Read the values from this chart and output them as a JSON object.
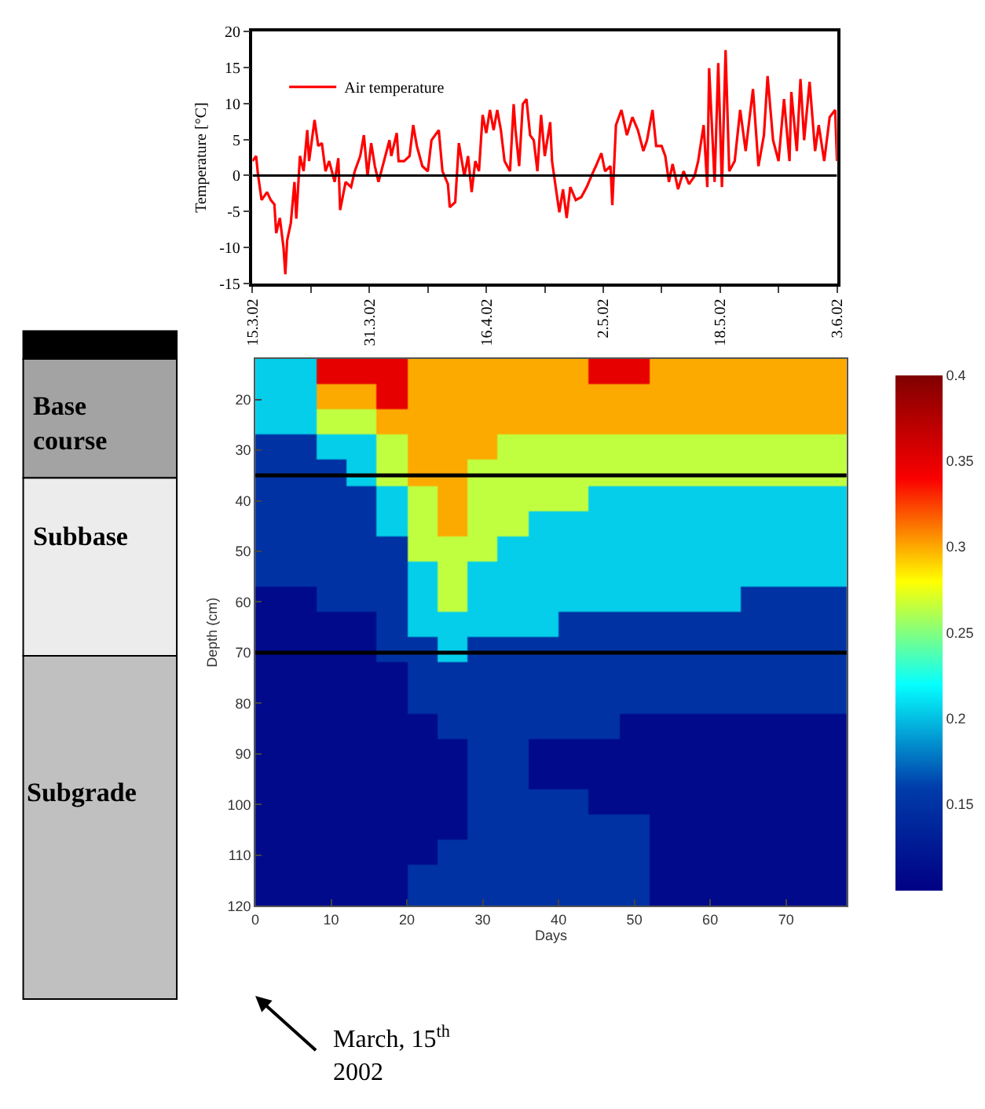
{
  "chart_data": [
    {
      "type": "line",
      "ylabel": "Temperature [°C]",
      "legend": "top left",
      "xlim": [
        "2002-03-15",
        "2002-06-03"
      ],
      "ylim": [
        -15,
        20
      ],
      "xticks": [
        {
          "value": "2002-03-15",
          "label": "15.3.02"
        },
        {
          "value": "2002-03-23",
          "label": null
        },
        {
          "value": "2002-03-31",
          "label": "31.3.02"
        },
        {
          "value": "2002-04-08",
          "label": null
        },
        {
          "value": "2002-04-16",
          "label": "16.4.02"
        },
        {
          "value": "2002-04-24",
          "label": null
        },
        {
          "value": "2002-05-02",
          "label": "2.5.02"
        },
        {
          "value": "2002-05-10",
          "label": null
        },
        {
          "value": "2002-05-18",
          "label": "18.5.02"
        },
        {
          "value": "2002-05-26",
          "label": null
        },
        {
          "value": "2002-06-03",
          "label": "3.6.02"
        }
      ],
      "yticks": [
        -15,
        -10,
        -5,
        0,
        5,
        10,
        15,
        20
      ],
      "ref_lines": [
        {
          "axis": "y",
          "value": 0,
          "color": "#000000"
        }
      ],
      "marker": "none",
      "line_style": "solid",
      "series": [
        {
          "name": "Air temperature",
          "color": "#ff0000",
          "x": [
            "2002-03-15T00:00",
            "2002-03-15T12:00",
            "2002-03-15T18:00",
            "2002-03-16T06:00",
            "2002-03-17T00:00",
            "2002-03-17T12:00",
            "2002-03-18T00:00",
            "2002-03-18T06:00",
            "2002-03-18T18:00",
            "2002-03-19T06:00",
            "2002-03-19T12:00",
            "2002-03-19T18:00",
            "2002-03-20T06:00",
            "2002-03-20T18:00",
            "2002-03-21T00:00",
            "2002-03-21T12:00",
            "2002-03-22T00:00",
            "2002-03-22T12:00",
            "2002-03-22T18:00",
            "2002-03-23T12:00",
            "2002-03-24T00:00",
            "2002-03-24T12:00",
            "2002-03-25T00:00",
            "2002-03-25T12:00",
            "2002-03-26T06:00",
            "2002-03-26T18:00",
            "2002-03-27T00:00",
            "2002-03-27T18:00",
            "2002-03-28T12:00",
            "2002-03-29T00:00",
            "2002-03-29T18:00",
            "2002-03-30T06:00",
            "2002-03-30T18:00",
            "2002-03-31T06:00",
            "2002-03-31T18:00",
            "2002-04-01T06:00",
            "2002-04-02T00:00",
            "2002-04-02T18:00",
            "2002-04-03T00:00",
            "2002-04-03T18:00",
            "2002-04-04T00:00",
            "2002-04-04T18:00",
            "2002-04-05T12:00",
            "2002-04-06T00:00",
            "2002-04-06T12:00",
            "2002-04-07T06:00",
            "2002-04-08T00:00",
            "2002-04-08T12:00",
            "2002-04-09T12:00",
            "2002-04-10T00:00",
            "2002-04-10T18:00",
            "2002-04-11T00:00",
            "2002-04-11T18:00",
            "2002-04-12T06:00",
            "2002-04-13T00:00",
            "2002-04-13T12:00",
            "2002-04-14T00:00",
            "2002-04-14T12:00",
            "2002-04-15T00:00",
            "2002-04-15T12:00",
            "2002-04-16T00:00",
            "2002-04-16T12:00",
            "2002-04-17T00:00",
            "2002-04-17T12:00",
            "2002-04-18T00:00",
            "2002-04-18T12:00",
            "2002-04-19T06:00",
            "2002-04-19T18:00",
            "2002-04-20T00:00",
            "2002-04-20T12:00",
            "2002-04-21T00:00",
            "2002-04-21T12:00",
            "2002-04-22T00:00",
            "2002-04-22T12:00",
            "2002-04-23T00:00",
            "2002-04-23T12:00",
            "2002-04-24T00:00",
            "2002-04-24T18:00",
            "2002-04-25T00:00",
            "2002-04-25T12:00",
            "2002-04-26T00:00",
            "2002-04-26T12:00",
            "2002-04-27T00:00",
            "2002-04-27T12:00",
            "2002-04-28T06:00",
            "2002-04-29T00:00",
            "2002-04-29T18:00",
            "2002-04-30T12:00",
            "2002-05-01T00:00",
            "2002-05-01T18:00",
            "2002-05-02T06:00",
            "2002-05-03T00:00",
            "2002-05-03T06:00",
            "2002-05-03T18:00",
            "2002-05-04T12:00",
            "2002-05-05T06:00",
            "2002-05-06T00:00",
            "2002-05-06T18:00",
            "2002-05-07T12:00",
            "2002-05-08T00:00",
            "2002-05-08T18:00",
            "2002-05-09T06:00",
            "2002-05-10T00:00",
            "2002-05-10T12:00",
            "2002-05-11T00:00",
            "2002-05-11T12:00",
            "2002-05-12T06:00",
            "2002-05-13T00:00",
            "2002-05-13T18:00",
            "2002-05-14T12:00",
            "2002-05-15T00:00",
            "2002-05-15T18:00",
            "2002-05-16T06:00",
            "2002-05-16T12:00",
            "2002-05-17T06:00",
            "2002-05-17T18:00",
            "2002-05-18T06:00",
            "2002-05-18T18:00",
            "2002-05-19T06:00",
            "2002-05-20T00:00",
            "2002-05-20T18:00",
            "2002-05-21T12:00",
            "2002-05-22T12:00",
            "2002-05-23T06:00",
            "2002-05-24T00:00",
            "2002-05-24T12:00",
            "2002-05-25T06:00",
            "2002-05-26T00:00",
            "2002-05-26T18:00",
            "2002-05-27T12:00",
            "2002-05-27T18:00",
            "2002-05-28T12:00",
            "2002-05-29T00:00",
            "2002-05-29T12:00",
            "2002-05-30T06:00",
            "2002-05-31T00:00",
            "2002-05-31T12:00",
            "2002-06-01T06:00",
            "2002-06-02T00:00",
            "2002-06-02T18:00",
            "2002-06-03T00:00"
          ],
          "values": [
            2,
            2.7,
            0.2,
            -3.4,
            -2.3,
            -3.4,
            -4,
            -8,
            -5.9,
            -10,
            -13.7,
            -9,
            -6.6,
            -0.9,
            -6,
            2.7,
            0.6,
            6.3,
            2,
            7.7,
            4.1,
            4.5,
            0.6,
            2,
            -0.9,
            2.4,
            -4.8,
            -0.9,
            -1.6,
            0.6,
            2.7,
            5.6,
            -0.1,
            4.5,
            1.3,
            -0.9,
            2,
            4.9,
            2.7,
            5.9,
            2,
            2,
            2.7,
            7,
            4.1,
            1.3,
            0.6,
            4.9,
            6.3,
            0.6,
            -1.2,
            -4.4,
            -3.7,
            4.5,
            -0.1,
            2.7,
            -2.3,
            2,
            0.6,
            8.4,
            5.9,
            9.1,
            6.3,
            9.1,
            6.3,
            2,
            0.6,
            9.9,
            6.3,
            1.3,
            9.9,
            10.6,
            5.6,
            4.9,
            0.6,
            8.4,
            2.7,
            7.4,
            2,
            -1.6,
            -5.1,
            -1.9,
            -5.9,
            -1.6,
            -3.4,
            -3,
            -1.6,
            0.2,
            1.3,
            3.1,
            0.6,
            1.3,
            -4.1,
            7,
            9.1,
            5.6,
            8.1,
            6.3,
            3.4,
            4.9,
            9.1,
            4.1,
            4.1,
            2.7,
            -0.9,
            1.6,
            -1.9,
            0.6,
            -1.2,
            -0.1,
            2,
            7,
            -1.6,
            14.9,
            -0.9,
            15.6,
            -1.6,
            17.4,
            0.6,
            2,
            9.1,
            3.4,
            12,
            1.3,
            5.6,
            13.8,
            4.9,
            2,
            10.6,
            2,
            11.6,
            3.4,
            13.4,
            4.9,
            13,
            3.4,
            7,
            2,
            8.1,
            9.1,
            2
          ]
        }
      ]
    },
    {
      "type": "heatmap",
      "xlabel": "Days",
      "ylabel": "Depth (cm)",
      "xlim": [
        0,
        78
      ],
      "ylim": [
        120,
        12
      ],
      "xticks": [
        0,
        10,
        20,
        30,
        40,
        50,
        60,
        70
      ],
      "yticks": [
        20,
        30,
        40,
        50,
        60,
        70,
        80,
        90,
        100,
        110,
        120
      ],
      "clim": [
        0.1,
        0.4
      ],
      "cticks": [
        0.15,
        0.2,
        0.25,
        0.3,
        0.35,
        0.4
      ],
      "x": [
        2,
        6,
        10,
        14,
        18,
        22,
        26,
        30,
        34,
        38,
        42,
        46,
        50,
        54,
        58,
        62,
        66,
        70,
        74,
        77
      ],
      "y": [
        14.5,
        19.5,
        24.5,
        29.5,
        34.5,
        39.5,
        44.5,
        49.5,
        54.5,
        59.5,
        64.5,
        69.5,
        74.5,
        79.5,
        84.5,
        89.5,
        94.5,
        99.5,
        104.5,
        109.5,
        114.5,
        119.5
      ],
      "cells": [
        [
          0.205,
          0.205,
          0.35,
          0.35,
          0.35,
          0.3,
          0.3,
          0.3,
          0.3,
          0.3,
          0.3,
          0.35,
          0.35,
          0.3,
          0.3,
          0.3,
          0.3,
          0.3,
          0.3,
          0.3
        ],
        [
          0.205,
          0.205,
          0.3,
          0.3,
          0.35,
          0.3,
          0.3,
          0.3,
          0.3,
          0.3,
          0.3,
          0.3,
          0.3,
          0.3,
          0.3,
          0.3,
          0.3,
          0.3,
          0.3,
          0.3
        ],
        [
          0.205,
          0.205,
          0.265,
          0.265,
          0.3,
          0.3,
          0.3,
          0.3,
          0.3,
          0.3,
          0.3,
          0.3,
          0.3,
          0.3,
          0.3,
          0.3,
          0.3,
          0.3,
          0.3,
          0.3
        ],
        [
          0.15,
          0.15,
          0.205,
          0.205,
          0.265,
          0.3,
          0.3,
          0.3,
          0.265,
          0.265,
          0.265,
          0.265,
          0.265,
          0.265,
          0.265,
          0.265,
          0.265,
          0.265,
          0.265,
          0.265
        ],
        [
          0.15,
          0.15,
          0.15,
          0.205,
          0.265,
          0.3,
          0.3,
          0.265,
          0.265,
          0.265,
          0.265,
          0.265,
          0.265,
          0.265,
          0.265,
          0.265,
          0.265,
          0.265,
          0.265,
          0.265
        ],
        [
          0.15,
          0.15,
          0.15,
          0.15,
          0.205,
          0.265,
          0.3,
          0.265,
          0.265,
          0.265,
          0.265,
          0.205,
          0.205,
          0.205,
          0.205,
          0.205,
          0.205,
          0.205,
          0.205,
          0.205
        ],
        [
          0.15,
          0.15,
          0.15,
          0.15,
          0.205,
          0.265,
          0.3,
          0.265,
          0.265,
          0.205,
          0.205,
          0.205,
          0.205,
          0.205,
          0.205,
          0.205,
          0.205,
          0.205,
          0.205,
          0.205
        ],
        [
          0.15,
          0.15,
          0.15,
          0.15,
          0.15,
          0.265,
          0.265,
          0.265,
          0.205,
          0.205,
          0.205,
          0.205,
          0.205,
          0.205,
          0.205,
          0.205,
          0.205,
          0.205,
          0.205,
          0.205
        ],
        [
          0.15,
          0.15,
          0.15,
          0.15,
          0.15,
          0.205,
          0.265,
          0.205,
          0.205,
          0.205,
          0.205,
          0.205,
          0.205,
          0.205,
          0.205,
          0.205,
          0.205,
          0.205,
          0.205,
          0.205
        ],
        [
          0.11,
          0.11,
          0.15,
          0.15,
          0.15,
          0.205,
          0.265,
          0.205,
          0.205,
          0.205,
          0.205,
          0.205,
          0.205,
          0.205,
          0.205,
          0.205,
          0.15,
          0.15,
          0.15,
          0.15
        ],
        [
          0.11,
          0.11,
          0.11,
          0.11,
          0.15,
          0.205,
          0.205,
          0.205,
          0.205,
          0.205,
          0.15,
          0.15,
          0.15,
          0.15,
          0.15,
          0.15,
          0.15,
          0.15,
          0.15,
          0.15
        ],
        [
          0.11,
          0.11,
          0.11,
          0.11,
          0.15,
          0.15,
          0.205,
          0.15,
          0.15,
          0.15,
          0.15,
          0.15,
          0.15,
          0.15,
          0.15,
          0.15,
          0.15,
          0.15,
          0.15,
          0.15
        ],
        [
          0.11,
          0.11,
          0.11,
          0.11,
          0.11,
          0.15,
          0.15,
          0.15,
          0.15,
          0.15,
          0.15,
          0.15,
          0.15,
          0.15,
          0.15,
          0.15,
          0.15,
          0.15,
          0.15,
          0.15
        ],
        [
          0.11,
          0.11,
          0.11,
          0.11,
          0.11,
          0.15,
          0.15,
          0.15,
          0.15,
          0.15,
          0.15,
          0.15,
          0.15,
          0.15,
          0.15,
          0.15,
          0.15,
          0.15,
          0.15,
          0.15
        ],
        [
          0.11,
          0.11,
          0.11,
          0.11,
          0.11,
          0.11,
          0.15,
          0.15,
          0.15,
          0.15,
          0.15,
          0.15,
          0.11,
          0.11,
          0.11,
          0.11,
          0.11,
          0.11,
          0.11,
          0.11
        ],
        [
          0.11,
          0.11,
          0.11,
          0.11,
          0.11,
          0.11,
          0.11,
          0.15,
          0.15,
          0.11,
          0.11,
          0.11,
          0.11,
          0.11,
          0.11,
          0.11,
          0.11,
          0.11,
          0.11,
          0.11
        ],
        [
          0.11,
          0.11,
          0.11,
          0.11,
          0.11,
          0.11,
          0.11,
          0.15,
          0.15,
          0.11,
          0.11,
          0.11,
          0.11,
          0.11,
          0.11,
          0.11,
          0.11,
          0.11,
          0.11,
          0.11
        ],
        [
          0.11,
          0.11,
          0.11,
          0.11,
          0.11,
          0.11,
          0.11,
          0.15,
          0.15,
          0.15,
          0.15,
          0.11,
          0.11,
          0.11,
          0.11,
          0.11,
          0.11,
          0.11,
          0.11,
          0.11
        ],
        [
          0.11,
          0.11,
          0.11,
          0.11,
          0.11,
          0.11,
          0.11,
          0.15,
          0.15,
          0.15,
          0.15,
          0.15,
          0.15,
          0.11,
          0.11,
          0.11,
          0.11,
          0.11,
          0.11,
          0.11
        ],
        [
          0.11,
          0.11,
          0.11,
          0.11,
          0.11,
          0.11,
          0.15,
          0.15,
          0.15,
          0.15,
          0.15,
          0.15,
          0.15,
          0.11,
          0.11,
          0.11,
          0.11,
          0.11,
          0.11,
          0.11
        ],
        [
          0.11,
          0.11,
          0.11,
          0.11,
          0.11,
          0.15,
          0.15,
          0.15,
          0.15,
          0.15,
          0.15,
          0.15,
          0.15,
          0.11,
          0.11,
          0.11,
          0.11,
          0.11,
          0.11,
          0.11
        ],
        [
          0.11,
          0.11,
          0.11,
          0.11,
          0.11,
          0.15,
          0.15,
          0.15,
          0.15,
          0.15,
          0.15,
          0.15,
          0.15,
          0.11,
          0.11,
          0.11,
          0.11,
          0.11,
          0.11,
          0.11
        ]
      ],
      "ref_lines": [
        {
          "axis": "y",
          "value": 35,
          "color": "#000000"
        },
        {
          "axis": "y",
          "value": 70,
          "color": "#000000"
        }
      ],
      "annotations": [
        "Base course",
        "Subbase",
        "Subgrade",
        "March, 15$^{th}$ 2002"
      ]
    }
  ]
}
